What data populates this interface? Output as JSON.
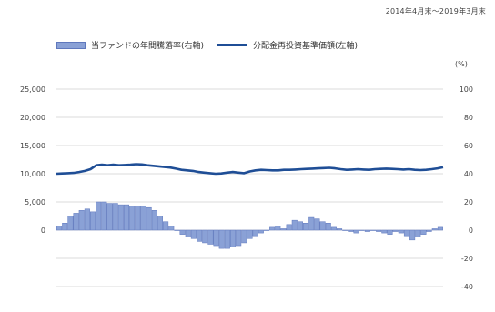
{
  "period": "2014年4月末～2019年3月末",
  "legend": {
    "bar": "当ファンドの年間騰落率(右軸)",
    "line": "分配金再投資基準価額(左軸)"
  },
  "unit": "(%)",
  "colors": {
    "bar_fill": "#8aa1d6",
    "bar_stroke": "#5f78bd",
    "line": "#1f4e96",
    "grid": "#cfcfcf"
  },
  "chart_data": {
    "type": "bar+line",
    "title": "",
    "xlabel": "",
    "ylabel_left": "",
    "ylabel_right": "(%)",
    "left_axis": {
      "ticks": [
        "25,000",
        "20,000",
        "15,000",
        "10,000",
        "5,000",
        "0"
      ],
      "tick_values": [
        25000,
        20000,
        15000,
        10000,
        5000,
        0
      ],
      "ylim": [
        -15000,
        25000
      ]
    },
    "right_axis": {
      "ticks": [
        "100",
        "80",
        "60",
        "40",
        "20",
        "0",
        "-20",
        "-40",
        "-60"
      ],
      "tick_values": [
        100,
        80,
        60,
        40,
        20,
        0,
        -20,
        -40,
        -60
      ],
      "ylim": [
        -60,
        100
      ]
    },
    "grid": true,
    "legend_position": "top",
    "series": [
      {
        "name": "当ファンドの年間騰落率(右軸)",
        "type": "bar",
        "axis": "right",
        "values": [
          3,
          5,
          10,
          12,
          14,
          15,
          13,
          20,
          20,
          19,
          19,
          18,
          18,
          17,
          17,
          17,
          16,
          14,
          10,
          6,
          3,
          0,
          -3,
          -5,
          -6,
          -8,
          -9,
          -10,
          -11,
          -13,
          -13,
          -12,
          -11,
          -9,
          -6,
          -4,
          -2,
          0,
          2,
          3,
          1,
          4,
          7,
          6,
          5,
          9,
          8,
          6,
          5,
          2,
          1,
          0,
          -1,
          -2,
          0,
          -1,
          0,
          -1,
          -2,
          -3,
          -1,
          -2,
          -4,
          -7,
          -5,
          -3,
          -1,
          1,
          2
        ]
      },
      {
        "name": "分配金再投資基準価額(左軸)",
        "type": "line",
        "axis": "left",
        "values": [
          10000,
          10050,
          10100,
          10150,
          10300,
          10500,
          10800,
          11500,
          11600,
          11500,
          11600,
          11500,
          11550,
          11600,
          11700,
          11650,
          11500,
          11400,
          11300,
          11200,
          11100,
          10900,
          10700,
          10600,
          10500,
          10300,
          10200,
          10100,
          10000,
          10050,
          10200,
          10300,
          10200,
          10100,
          10400,
          10600,
          10700,
          10650,
          10600,
          10600,
          10700,
          10700,
          10750,
          10800,
          10850,
          10900,
          10950,
          11000,
          11050,
          10950,
          10800,
          10700,
          10750,
          10800,
          10750,
          10700,
          10800,
          10850,
          10900,
          10850,
          10800,
          10750,
          10800,
          10700,
          10650,
          10700,
          10800,
          10950,
          11150
        ]
      }
    ]
  }
}
